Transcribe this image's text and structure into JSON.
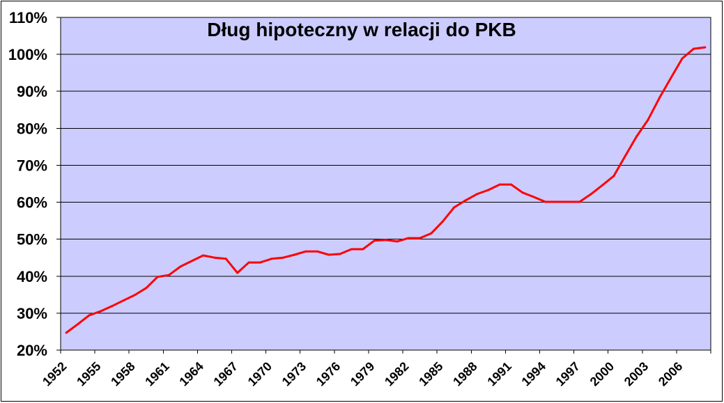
{
  "chart_data": {
    "type": "line",
    "title": "Dług hipoteczny w relacji do PKB",
    "x": [
      1952,
      1953,
      1954,
      1955,
      1956,
      1957,
      1958,
      1959,
      1960,
      1961,
      1962,
      1963,
      1964,
      1965,
      1966,
      1967,
      1968,
      1969,
      1970,
      1971,
      1972,
      1973,
      1974,
      1975,
      1976,
      1977,
      1978,
      1979,
      1980,
      1981,
      1982,
      1983,
      1984,
      1985,
      1986,
      1987,
      1988,
      1989,
      1990,
      1991,
      1992,
      1993,
      1994,
      1995,
      1996,
      1997,
      1998,
      1999,
      2000,
      2001,
      2002,
      2003,
      2004,
      2005,
      2006,
      2007,
      2008
    ],
    "x_ticks": [
      1952,
      1955,
      1958,
      1961,
      1964,
      1967,
      1970,
      1973,
      1976,
      1979,
      1982,
      1985,
      1988,
      1991,
      1994,
      1997,
      2000,
      2003,
      2006
    ],
    "x_tick_labels": [
      "1952",
      "1955",
      "1958",
      "1961",
      "1964",
      "1967",
      "1970",
      "1973",
      "1976",
      "1979",
      "1982",
      "1985",
      "1988",
      "1991",
      "1994",
      "1997",
      "2000",
      "2003",
      "2006"
    ],
    "y_ticks": [
      20,
      30,
      40,
      50,
      60,
      70,
      80,
      90,
      100,
      110
    ],
    "y_tick_labels": [
      "20%",
      "30%",
      "40%",
      "50%",
      "60%",
      "70%",
      "80%",
      "90%",
      "100%",
      "110%"
    ],
    "ylim": [
      20,
      110
    ],
    "grid": true,
    "series": [
      {
        "values": [
          24.7,
          27.0,
          29.4,
          30.5,
          31.9,
          33.4,
          34.9,
          36.8,
          39.8,
          40.3,
          42.6,
          44.1,
          45.6,
          45.0,
          44.7,
          40.9,
          43.7,
          43.7,
          44.7,
          45.0,
          45.8,
          46.7,
          46.7,
          45.8,
          46.0,
          47.3,
          47.3,
          49.6,
          49.8,
          49.4,
          50.3,
          50.3,
          51.6,
          54.8,
          58.6,
          60.5,
          62.2,
          63.3,
          64.8,
          64.8,
          62.6,
          61.4,
          60.1,
          60.1,
          60.1,
          60.1,
          62.2,
          64.6,
          67.1,
          72.5,
          77.8,
          82.3,
          88.2,
          93.6,
          98.9,
          101.5,
          101.9
        ],
        "color": "#FF0000"
      }
    ],
    "colors": {
      "chart_background": "#FFFFFF",
      "plot_background": "#CCCCFF",
      "gridline": "#000000",
      "axis": "#000000"
    }
  }
}
